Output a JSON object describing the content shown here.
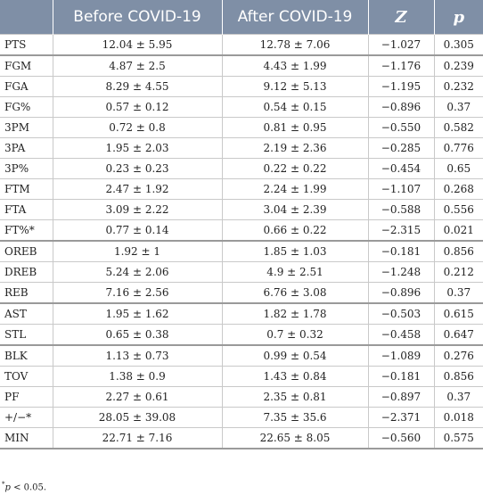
{
  "table": {
    "headers": [
      "",
      "Before COVID-19",
      "After COVID-19",
      "Z",
      "p"
    ],
    "rows": [
      [
        "PTS",
        "12.04 ± 5.95",
        "12.78 ± 7.06",
        "−1.027",
        "0.305"
      ],
      [
        "FGM",
        "4.87 ± 2.5",
        "4.43 ± 1.99",
        "−1.176",
        "0.239"
      ],
      [
        "FGA",
        "8.29 ± 4.55",
        "9.12 ± 5.13",
        "−1.195",
        "0.232"
      ],
      [
        "FG%",
        "0.57 ± 0.12",
        "0.54 ± 0.15",
        "−0.896",
        "0.37"
      ],
      [
        "3PM",
        "0.72 ± 0.8",
        "0.81 ± 0.95",
        "−0.550",
        "0.582"
      ],
      [
        "3PA",
        "1.95 ± 2.03",
        "2.19 ± 2.36",
        "−0.285",
        "0.776"
      ],
      [
        "3P%",
        "0.23 ± 0.23",
        "0.22 ± 0.22",
        "−0.454",
        "0.65"
      ],
      [
        "FTM",
        "2.47 ± 1.92",
        "2.24 ± 1.99",
        "−1.107",
        "0.268"
      ],
      [
        "FTA",
        "3.09 ± 2.22",
        "3.04 ± 2.39",
        "−0.588",
        "0.556"
      ],
      [
        "FT%*",
        "0.77 ± 0.14",
        "0.66 ± 0.22",
        "−2.315",
        "0.021"
      ],
      [
        "OREB",
        "1.92 ± 1",
        "1.85 ± 1.03",
        "−0.181",
        "0.856"
      ],
      [
        "DREB",
        "5.24 ± 2.06",
        "4.9 ± 2.51",
        "−1.248",
        "0.212"
      ],
      [
        "REB",
        "7.16 ± 2.56",
        "6.76 ± 3.08",
        "−0.896",
        "0.37"
      ],
      [
        "AST",
        "1.95 ± 1.62",
        "1.82 ± 1.78",
        "−0.503",
        "0.615"
      ],
      [
        "STL",
        "0.65 ± 0.38",
        "0.7 ± 0.32",
        "−0.458",
        "0.647"
      ],
      [
        "BLK",
        "1.13 ± 0.73",
        "0.99 ± 0.54",
        "−1.089",
        "0.276"
      ],
      [
        "TOV",
        "1.38 ± 0.9",
        "1.43 ± 0.84",
        "−0.181",
        "0.856"
      ],
      [
        "PF",
        "2.27 ± 0.61",
        "2.35 ± 0.81",
        "−0.897",
        "0.37"
      ],
      [
        "+/−*",
        "28.05 ± 39.08",
        "7.35 ± 35.6",
        "−2.371",
        "0.018"
      ],
      [
        "MIN",
        "22.71 ± 7.16",
        "22.65 ± 8.05",
        "−0.560",
        "0.575"
      ]
    ],
    "group_ends": [
      "PTS",
      "FT%*",
      "REB",
      "STL",
      "MIN"
    ]
  },
  "footnote": {
    "marker": "*",
    "var": "p",
    "rest": " < 0.05."
  }
}
